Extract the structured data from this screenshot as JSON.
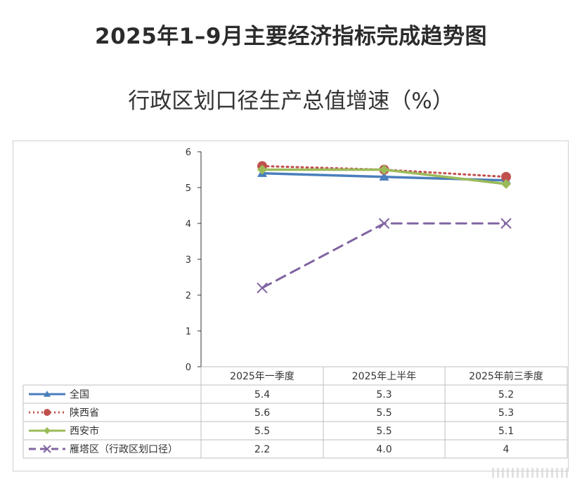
{
  "title": "2025年1–9月主要经济指标完成趋势图",
  "subtitle": "行政区划口径生产总值增速（%）",
  "chart_data": {
    "type": "line",
    "categories": [
      "2025年一季度",
      "2025年上半年",
      "2025年前三季度"
    ],
    "ylim": [
      0,
      6
    ],
    "yticks": [
      "0",
      "1",
      "2",
      "3",
      "4",
      "5",
      "6"
    ],
    "grid": false,
    "legend": "data-table",
    "series": [
      {
        "name": "全国",
        "values": [
          5.4,
          5.3,
          5.2
        ],
        "labels": [
          "5.4",
          "5.3",
          "5.2"
        ],
        "color": "#4a7ebb",
        "marker": "triangle",
        "dash": "solid"
      },
      {
        "name": "陕西省",
        "values": [
          5.6,
          5.5,
          5.3
        ],
        "labels": [
          "5.6",
          "5.5",
          "5.3"
        ],
        "color": "#c0504d",
        "marker": "circle",
        "dash": "dotted"
      },
      {
        "name": "西安市",
        "values": [
          5.5,
          5.5,
          5.1
        ],
        "labels": [
          "5.5",
          "5.5",
          "5.1"
        ],
        "color": "#9bbb59",
        "marker": "diamond",
        "dash": "solid"
      },
      {
        "name": "雁塔区（行政区划口径）",
        "values": [
          2.2,
          4.0,
          4.0
        ],
        "labels": [
          "2.2",
          "4.0",
          "4"
        ],
        "color": "#8064a2",
        "marker": "x",
        "dash": "dashed"
      }
    ]
  }
}
